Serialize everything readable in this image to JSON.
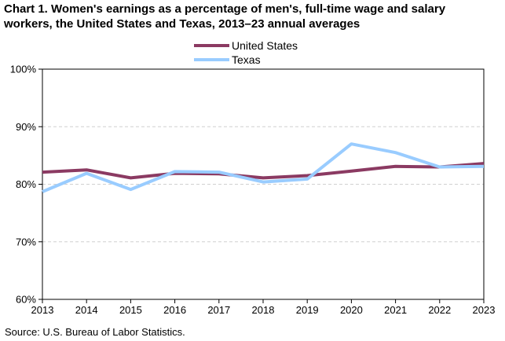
{
  "title_line1": "Chart 1. Women's earnings as a percentage of men's, full-time wage and salary",
  "title_line2": "workers, the United States and Texas, 2013–23 annual averages",
  "source": "Source:  U.S. Bureau of Labor Statistics.",
  "chart_data": {
    "type": "line",
    "title": "Chart 1. Women's earnings as a percentage of men's, full-time wage and salary workers, the United States and Texas, 2013–23 annual averages",
    "x": [
      2013,
      2014,
      2015,
      2016,
      2017,
      2018,
      2019,
      2020,
      2021,
      2022,
      2023
    ],
    "x_tick_labels": [
      "2013",
      "2014",
      "2015",
      "2016",
      "2017",
      "2018",
      "2019",
      "2020",
      "2021",
      "2022",
      "2023"
    ],
    "y_tick_labels": [
      "60%",
      "70%",
      "80%",
      "90%",
      "100%"
    ],
    "ylim": [
      60,
      100
    ],
    "y_ticks": [
      60,
      70,
      80,
      90,
      100
    ],
    "grid": true,
    "legend_placement": "top-center",
    "series": [
      {
        "name": "United States",
        "color": "#8B3A62",
        "values": [
          82.1,
          82.5,
          81.1,
          81.9,
          81.8,
          81.1,
          81.5,
          82.3,
          83.1,
          83.0,
          83.6
        ]
      },
      {
        "name": "Texas",
        "color": "#99CCFF",
        "values": [
          78.7,
          81.9,
          79.1,
          82.2,
          82.1,
          80.4,
          80.9,
          87.0,
          85.5,
          83.0,
          83.1
        ]
      }
    ]
  }
}
